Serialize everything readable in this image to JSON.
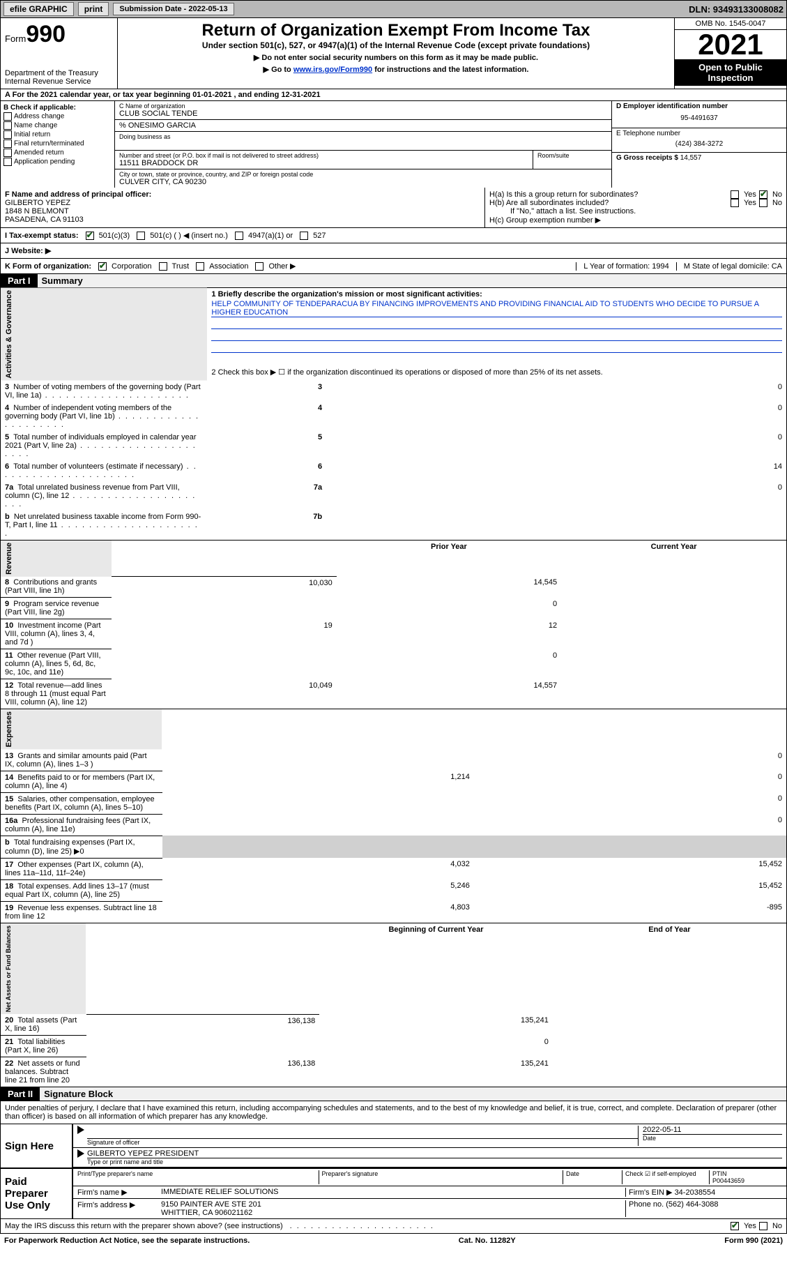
{
  "topbar": {
    "efile": "efile GRAPHIC",
    "print": "print",
    "submission": "Submission Date - 2022-05-13",
    "dln": "DLN: 93493133008082"
  },
  "header": {
    "form_word": "Form",
    "form_num": "990",
    "dept": "Department of the Treasury",
    "irs": "Internal Revenue Service",
    "title": "Return of Organization Exempt From Income Tax",
    "subtitle": "Under section 501(c), 527, or 4947(a)(1) of the Internal Revenue Code (except private foundations)",
    "instr1": "▶ Do not enter social security numbers on this form as it may be made public.",
    "instr2_pre": "▶ Go to ",
    "instr2_link": "www.irs.gov/Form990",
    "instr2_post": " for instructions and the latest information.",
    "omb": "OMB No. 1545-0047",
    "year": "2021",
    "open": "Open to Public Inspection"
  },
  "row_a": "A For the 2021 calendar year, or tax year beginning 01-01-2021    , and ending 12-31-2021",
  "box_b": {
    "label": "B Check if applicable:",
    "opts": [
      "Address change",
      "Name change",
      "Initial return",
      "Final return/terminated",
      "Amended return",
      "Application pending"
    ]
  },
  "box_c": {
    "name_label": "C Name of organization",
    "name": "CLUB SOCIAL TENDE",
    "care_of": "% ONESIMO GARCIA",
    "dba_label": "Doing business as",
    "addr_label": "Number and street (or P.O. box if mail is not delivered to street address)",
    "room_label": "Room/suite",
    "addr": "11511 BRADDOCK DR",
    "city_label": "City or town, state or province, country, and ZIP or foreign postal code",
    "city": "CULVER CITY, CA  90230"
  },
  "box_d": {
    "ein_label": "D Employer identification number",
    "ein": "95-4491637",
    "phone_label": "E Telephone number",
    "phone": "(424) 384-3272",
    "gross_label": "G Gross receipts $",
    "gross": "14,557"
  },
  "box_f": {
    "label": "F Name and address of principal officer:",
    "name": "GILBERTO YEPEZ",
    "addr1": "1848 N BELMONT",
    "addr2": "PASADENA, CA  91103"
  },
  "box_h": {
    "ha": "H(a)  Is this a group return for subordinates?",
    "hb": "H(b)  Are all subordinates included?",
    "hb_note": "If \"No,\" attach a list. See instructions.",
    "hc": "H(c)  Group exemption number ▶",
    "yes": "Yes",
    "no": "No"
  },
  "row_i": {
    "label": "I  Tax-exempt status:",
    "opt1": "501(c)(3)",
    "opt2": "501(c) (   ) ◀ (insert no.)",
    "opt3": "4947(a)(1) or",
    "opt4": "527"
  },
  "row_j": "J  Website: ▶",
  "row_k": {
    "label": "K Form of organization:",
    "opts": [
      "Corporation",
      "Trust",
      "Association",
      "Other ▶"
    ],
    "l": "L Year of formation: 1994",
    "m": "M State of legal domicile: CA"
  },
  "part1": {
    "num": "Part I",
    "title": "Summary",
    "line1_label": "1  Briefly describe the organization's mission or most significant activities:",
    "mission": "HELP COMMUNITY OF TENDEPARACUA BY FINANCING IMPROVEMENTS AND PROVIDING FINANCIAL AID TO STUDENTS WHO DECIDE TO PURSUE A HIGHER EDUCATION",
    "line2": "2  Check this box ▶ ☐ if the organization discontinued its operations or disposed of more than 25% of its net assets.",
    "side_gov": "Activities & Governance",
    "side_rev": "Revenue",
    "side_exp": "Expenses",
    "side_net": "Net Assets or Fund Balances",
    "prior": "Prior Year",
    "current": "Current Year",
    "begin": "Beginning of Current Year",
    "end": "End of Year",
    "lines_gov": [
      {
        "n": "3",
        "t": "Number of voting members of the governing body (Part VI, line 1a)",
        "b": "3",
        "v": "0"
      },
      {
        "n": "4",
        "t": "Number of independent voting members of the governing body (Part VI, line 1b)",
        "b": "4",
        "v": "0"
      },
      {
        "n": "5",
        "t": "Total number of individuals employed in calendar year 2021 (Part V, line 2a)",
        "b": "5",
        "v": "0"
      },
      {
        "n": "6",
        "t": "Total number of volunteers (estimate if necessary)",
        "b": "6",
        "v": "14"
      },
      {
        "n": "7a",
        "t": "Total unrelated business revenue from Part VIII, column (C), line 12",
        "b": "7a",
        "v": "0"
      },
      {
        "n": "b",
        "t": "Net unrelated business taxable income from Form 990-T, Part I, line 11",
        "b": "7b",
        "v": ""
      }
    ],
    "lines_rev": [
      {
        "n": "8",
        "t": "Contributions and grants (Part VIII, line 1h)",
        "p": "10,030",
        "c": "14,545"
      },
      {
        "n": "9",
        "t": "Program service revenue (Part VIII, line 2g)",
        "p": "",
        "c": "0"
      },
      {
        "n": "10",
        "t": "Investment income (Part VIII, column (A), lines 3, 4, and 7d )",
        "p": "19",
        "c": "12"
      },
      {
        "n": "11",
        "t": "Other revenue (Part VIII, column (A), lines 5, 6d, 8c, 9c, 10c, and 11e)",
        "p": "",
        "c": "0"
      },
      {
        "n": "12",
        "t": "Total revenue—add lines 8 through 11 (must equal Part VIII, column (A), line 12)",
        "p": "10,049",
        "c": "14,557"
      }
    ],
    "lines_exp": [
      {
        "n": "13",
        "t": "Grants and similar amounts paid (Part IX, column (A), lines 1–3 )",
        "p": "",
        "c": "0"
      },
      {
        "n": "14",
        "t": "Benefits paid to or for members (Part IX, column (A), line 4)",
        "p": "1,214",
        "c": "0"
      },
      {
        "n": "15",
        "t": "Salaries, other compensation, employee benefits (Part IX, column (A), lines 5–10)",
        "p": "",
        "c": "0"
      },
      {
        "n": "16a",
        "t": "Professional fundraising fees (Part IX, column (A), line 11e)",
        "p": "",
        "c": "0"
      },
      {
        "n": "b",
        "t": "Total fundraising expenses (Part IX, column (D), line 25) ▶0",
        "p": "shaded",
        "c": "shaded"
      },
      {
        "n": "17",
        "t": "Other expenses (Part IX, column (A), lines 11a–11d, 11f–24e)",
        "p": "4,032",
        "c": "15,452"
      },
      {
        "n": "18",
        "t": "Total expenses. Add lines 13–17 (must equal Part IX, column (A), line 25)",
        "p": "5,246",
        "c": "15,452"
      },
      {
        "n": "19",
        "t": "Revenue less expenses. Subtract line 18 from line 12",
        "p": "4,803",
        "c": "-895"
      }
    ],
    "lines_net": [
      {
        "n": "20",
        "t": "Total assets (Part X, line 16)",
        "p": "136,138",
        "c": "135,241"
      },
      {
        "n": "21",
        "t": "Total liabilities (Part X, line 26)",
        "p": "",
        "c": "0"
      },
      {
        "n": "22",
        "t": "Net assets or fund balances. Subtract line 21 from line 20",
        "p": "136,138",
        "c": "135,241"
      }
    ]
  },
  "part2": {
    "num": "Part II",
    "title": "Signature Block",
    "decl": "Under penalties of perjury, I declare that I have examined this return, including accompanying schedules and statements, and to the best of my knowledge and belief, it is true, correct, and complete. Declaration of preparer (other than officer) is based on all information of which preparer has any knowledge.",
    "sign_here": "Sign Here",
    "sig_officer": "Signature of officer",
    "date_label": "Date",
    "sig_date": "2022-05-11",
    "officer_name": "GILBERTO YEPEZ  PRESIDENT",
    "typed": "Type or print name and title",
    "paid": "Paid Preparer Use Only",
    "prep_name_label": "Print/Type preparer's name",
    "prep_sig_label": "Preparer's signature",
    "check_self": "Check ☑ if self-employed",
    "ptin_label": "PTIN",
    "ptin": "P00443659",
    "firm_name_label": "Firm's name    ▶",
    "firm_name": "IMMEDIATE RELIEF SOLUTIONS",
    "firm_ein_label": "Firm's EIN ▶",
    "firm_ein": "34-2038554",
    "firm_addr_label": "Firm's address ▶",
    "firm_addr1": "9150 PAINTER AVE STE 201",
    "firm_addr2": "WHITTIER, CA  906021162",
    "firm_phone_label": "Phone no.",
    "firm_phone": "(562) 464-3088",
    "discuss": "May the IRS discuss this return with the preparer shown above? (see instructions)"
  },
  "footer": {
    "pra": "For Paperwork Reduction Act Notice, see the separate instructions.",
    "cat": "Cat. No. 11282Y",
    "form": "Form 990 (2021)"
  },
  "colors": {
    "link": "#0033cc",
    "check": "#1a5c1a",
    "shade": "#d0d0d0"
  }
}
